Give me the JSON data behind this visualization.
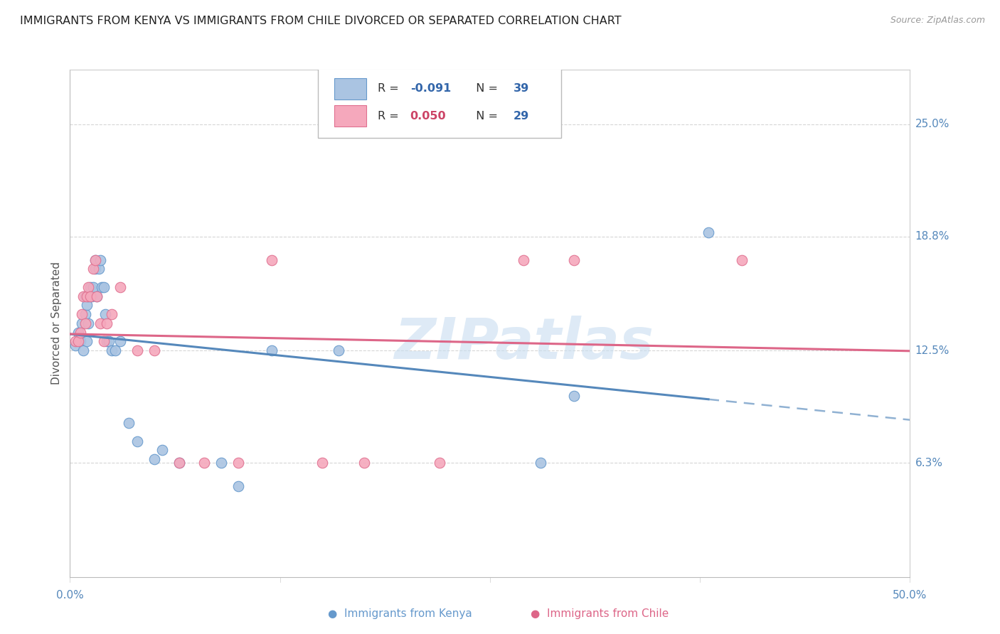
{
  "title": "IMMIGRANTS FROM KENYA VS IMMIGRANTS FROM CHILE DIVORCED OR SEPARATED CORRELATION CHART",
  "source": "Source: ZipAtlas.com",
  "ylabel": "Divorced or Separated",
  "y_tick_labels": [
    "25.0%",
    "18.8%",
    "12.5%",
    "6.3%"
  ],
  "y_tick_values": [
    0.25,
    0.188,
    0.125,
    0.063
  ],
  "x_tick_labels": [
    "0.0%",
    "50.0%"
  ],
  "x_tick_values": [
    0.0,
    0.5
  ],
  "xlim": [
    0.0,
    0.5
  ],
  "ylim": [
    0.0,
    0.28
  ],
  "kenya_R": -0.091,
  "kenya_N": 39,
  "chile_R": 0.05,
  "chile_N": 29,
  "kenya_color": "#aac4e2",
  "chile_color": "#f5a8bc",
  "kenya_edge_color": "#6699cc",
  "chile_edge_color": "#e07090",
  "kenya_line_color": "#5588bb",
  "chile_line_color": "#dd6688",
  "kenya_x": [
    0.003,
    0.005,
    0.006,
    0.007,
    0.008,
    0.009,
    0.009,
    0.01,
    0.01,
    0.011,
    0.011,
    0.012,
    0.013,
    0.014,
    0.015,
    0.015,
    0.016,
    0.017,
    0.018,
    0.019,
    0.02,
    0.021,
    0.022,
    0.023,
    0.025,
    0.027,
    0.03,
    0.035,
    0.04,
    0.05,
    0.055,
    0.065,
    0.09,
    0.1,
    0.12,
    0.16,
    0.28,
    0.3,
    0.38
  ],
  "kenya_y": [
    0.128,
    0.135,
    0.13,
    0.14,
    0.125,
    0.145,
    0.155,
    0.13,
    0.15,
    0.14,
    0.155,
    0.16,
    0.155,
    0.16,
    0.17,
    0.175,
    0.155,
    0.17,
    0.175,
    0.16,
    0.16,
    0.145,
    0.13,
    0.13,
    0.125,
    0.125,
    0.13,
    0.085,
    0.075,
    0.065,
    0.07,
    0.063,
    0.063,
    0.05,
    0.125,
    0.125,
    0.063,
    0.1,
    0.19
  ],
  "chile_x": [
    0.003,
    0.005,
    0.006,
    0.007,
    0.008,
    0.009,
    0.01,
    0.011,
    0.012,
    0.014,
    0.015,
    0.016,
    0.018,
    0.02,
    0.022,
    0.025,
    0.03,
    0.04,
    0.05,
    0.065,
    0.08,
    0.1,
    0.12,
    0.15,
    0.175,
    0.22,
    0.27,
    0.3,
    0.4
  ],
  "chile_y": [
    0.13,
    0.13,
    0.135,
    0.145,
    0.155,
    0.14,
    0.155,
    0.16,
    0.155,
    0.17,
    0.175,
    0.155,
    0.14,
    0.13,
    0.14,
    0.145,
    0.16,
    0.125,
    0.125,
    0.063,
    0.063,
    0.063,
    0.175,
    0.063,
    0.063,
    0.063,
    0.175,
    0.175,
    0.175
  ],
  "watermark_text": "ZIPatlas",
  "watermark_color": "#c8ddf0",
  "watermark_alpha": 0.6,
  "background_color": "#ffffff",
  "grid_color": "#cccccc",
  "legend_R_color_kenya": "#3366aa",
  "legend_R_color_chile": "#cc4466",
  "legend_N_color": "#3366aa",
  "bottom_legend_kenya_color": "#6699cc",
  "bottom_legend_chile_color": "#dd6688"
}
